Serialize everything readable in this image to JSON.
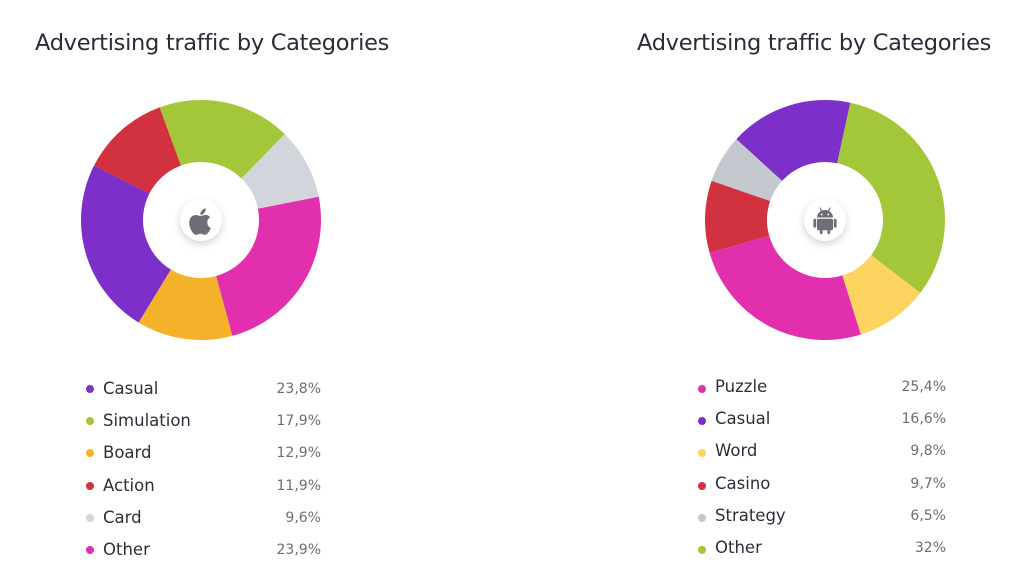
{
  "chart_data": [
    {
      "type": "pie",
      "title": "Advertising traffic by Categories",
      "platform_icon": "apple-icon",
      "categories": [
        "Casual",
        "Simulation",
        "Board",
        "Action",
        "Card",
        "Other"
      ],
      "values": [
        23.8,
        17.9,
        12.9,
        11.9,
        9.6,
        23.9
      ],
      "value_labels": [
        "23,8%",
        "17,9%",
        "12,9%",
        "11,9%",
        "9,6%",
        "23,9%"
      ],
      "colors": [
        "#7c2fc9",
        "#a4c639",
        "#f3b22a",
        "#d2313f",
        "#d3d5dc",
        "#e12fad"
      ],
      "slice_order": [
        "Action",
        "Simulation",
        "Card",
        "Other",
        "Board",
        "Casual"
      ],
      "legend_position": "bottom"
    },
    {
      "type": "pie",
      "title": "Advertising traffic by Categories",
      "platform_icon": "android-icon",
      "categories": [
        "Puzzle",
        "Casual",
        "Word",
        "Casino",
        "Strategy",
        "Other"
      ],
      "values": [
        25.4,
        16.6,
        9.8,
        9.7,
        6.5,
        32
      ],
      "value_labels": [
        "25,4%",
        "16,6%",
        "9,8%",
        "9,7%",
        "6,5%",
        "32%"
      ],
      "colors": [
        "#e12fad",
        "#7c2fc9",
        "#fdd460",
        "#d2313f",
        "#c6c8d0",
        "#a4c639"
      ],
      "slice_order": [
        "Strategy",
        "Casual",
        "Other",
        "Word",
        "Puzzle",
        "Casino"
      ],
      "legend_position": "bottom"
    }
  ]
}
